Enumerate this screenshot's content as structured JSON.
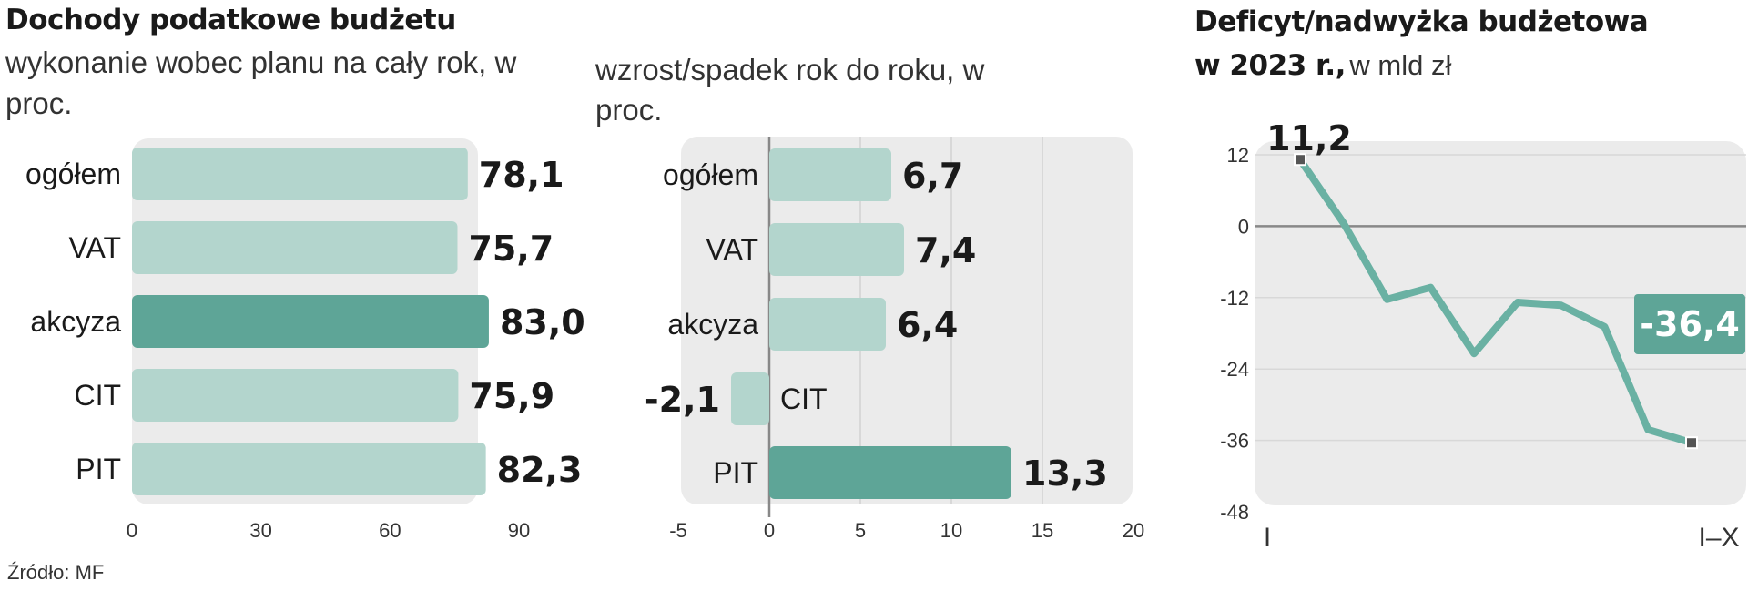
{
  "chart_data": [
    {
      "type": "bar",
      "orientation": "horizontal",
      "title": "Dochody podatkowe budżetu",
      "subtitle": "wykonanie wobec planu na cały rok, w proc.",
      "categories": [
        "ogółem",
        "VAT",
        "akcyza",
        "CIT",
        "PIT"
      ],
      "values": [
        78.1,
        75.7,
        83.0,
        75.9,
        82.3
      ],
      "value_labels": [
        "78,1",
        "75,7",
        "83,0",
        "75,9",
        "82,3"
      ],
      "highlight": "akcyza",
      "xlim": [
        0,
        90
      ],
      "xticks": [
        0,
        30,
        60,
        90
      ],
      "grid": false
    },
    {
      "type": "bar",
      "orientation": "horizontal",
      "subtitle": "wzrost/spadek rok do roku, w proc.",
      "categories": [
        "ogółem",
        "VAT",
        "akcyza",
        "CIT",
        "PIT"
      ],
      "values": [
        6.7,
        7.4,
        6.4,
        -2.1,
        13.3
      ],
      "value_labels": [
        "6,7",
        "7,4",
        "6,4",
        "-2,1",
        "13,3"
      ],
      "highlight": "PIT",
      "xlim": [
        -5,
        20
      ],
      "xticks": [
        -5,
        0,
        5,
        10,
        15,
        20
      ],
      "grid": true
    },
    {
      "type": "line",
      "title": "Deficyt/nadwyżka budżetowa",
      "subtitle_bold": "w 2023 r.,",
      "subtitle": "w mld zł",
      "x_labels": [
        "I",
        "I–X"
      ],
      "x": [
        1,
        2,
        3,
        4,
        5,
        6,
        7,
        8,
        9,
        10
      ],
      "y": [
        11.2,
        0.5,
        -12.3,
        -10.3,
        -21.4,
        -12.8,
        -13.3,
        -16.9,
        -34.2,
        -36.4
      ],
      "first_label": "11,2",
      "last_label": "-36,4",
      "ylim": [
        -48,
        12
      ],
      "yticks": [
        12,
        0,
        -12,
        -24,
        -36,
        -48
      ],
      "grid": true
    }
  ],
  "source": "Źródło: MF",
  "colors": {
    "bar_light": "#b3d5cd",
    "bar_dark": "#5ea597",
    "panel_bg": "#ebebeb",
    "line": "#6ab1a3",
    "label_box": "#5ea597",
    "zero_line": "#888888"
  }
}
